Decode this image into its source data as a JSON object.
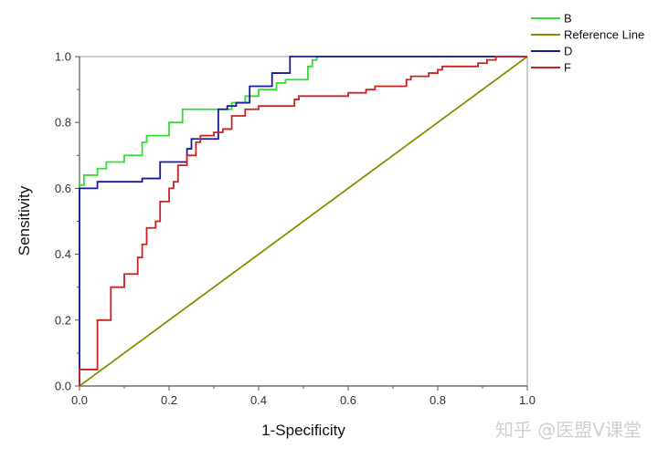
{
  "chart_data": {
    "type": "line",
    "title": "",
    "xlabel": "1-Specificity",
    "ylabel": "Sensitivity",
    "xlim": [
      0,
      1
    ],
    "ylim": [
      0,
      1
    ],
    "xticks": [
      "0.0",
      "0.2",
      "0.4",
      "0.6",
      "0.8",
      "1.0"
    ],
    "yticks": [
      "0.0",
      "0.2",
      "0.4",
      "0.6",
      "0.8",
      "1.0"
    ],
    "grid": false,
    "legend_position": "top-right, outside plot",
    "series": [
      {
        "name": "B",
        "color": "#33dd33",
        "step": true,
        "points": [
          [
            0,
            0
          ],
          [
            0,
            0.61
          ],
          [
            0.01,
            0.61
          ],
          [
            0.01,
            0.64
          ],
          [
            0.04,
            0.64
          ],
          [
            0.04,
            0.66
          ],
          [
            0.06,
            0.66
          ],
          [
            0.06,
            0.68
          ],
          [
            0.1,
            0.68
          ],
          [
            0.1,
            0.7
          ],
          [
            0.14,
            0.7
          ],
          [
            0.14,
            0.74
          ],
          [
            0.15,
            0.74
          ],
          [
            0.15,
            0.76
          ],
          [
            0.2,
            0.76
          ],
          [
            0.2,
            0.8
          ],
          [
            0.23,
            0.8
          ],
          [
            0.23,
            0.84
          ],
          [
            0.34,
            0.84
          ],
          [
            0.34,
            0.86
          ],
          [
            0.37,
            0.86
          ],
          [
            0.37,
            0.88
          ],
          [
            0.4,
            0.88
          ],
          [
            0.4,
            0.9
          ],
          [
            0.44,
            0.9
          ],
          [
            0.44,
            0.92
          ],
          [
            0.46,
            0.92
          ],
          [
            0.46,
            0.93
          ],
          [
            0.51,
            0.93
          ],
          [
            0.51,
            0.97
          ],
          [
            0.52,
            0.97
          ],
          [
            0.52,
            0.99
          ],
          [
            0.53,
            0.99
          ],
          [
            0.53,
            1.0
          ],
          [
            1,
            1.0
          ]
        ]
      },
      {
        "name": "Reference Line",
        "color": "#8c8c00",
        "step": false,
        "points": [
          [
            0,
            0
          ],
          [
            1,
            1
          ]
        ]
      },
      {
        "name": "D",
        "color": "#1a1a99",
        "step": true,
        "points": [
          [
            0,
            0
          ],
          [
            0,
            0.6
          ],
          [
            0.04,
            0.6
          ],
          [
            0.04,
            0.62
          ],
          [
            0.14,
            0.62
          ],
          [
            0.14,
            0.63
          ],
          [
            0.18,
            0.63
          ],
          [
            0.18,
            0.68
          ],
          [
            0.24,
            0.68
          ],
          [
            0.24,
            0.72
          ],
          [
            0.25,
            0.72
          ],
          [
            0.25,
            0.75
          ],
          [
            0.31,
            0.75
          ],
          [
            0.31,
            0.84
          ],
          [
            0.33,
            0.84
          ],
          [
            0.33,
            0.85
          ],
          [
            0.35,
            0.85
          ],
          [
            0.35,
            0.86
          ],
          [
            0.38,
            0.86
          ],
          [
            0.38,
            0.91
          ],
          [
            0.43,
            0.91
          ],
          [
            0.43,
            0.95
          ],
          [
            0.47,
            0.95
          ],
          [
            0.47,
            1.0
          ],
          [
            1,
            1.0
          ]
        ]
      },
      {
        "name": "F",
        "color": "#cc2222",
        "step": true,
        "points": [
          [
            0,
            0
          ],
          [
            0,
            0.05
          ],
          [
            0.04,
            0.05
          ],
          [
            0.04,
            0.2
          ],
          [
            0.07,
            0.2
          ],
          [
            0.07,
            0.3
          ],
          [
            0.1,
            0.3
          ],
          [
            0.1,
            0.34
          ],
          [
            0.13,
            0.34
          ],
          [
            0.13,
            0.39
          ],
          [
            0.14,
            0.39
          ],
          [
            0.14,
            0.43
          ],
          [
            0.15,
            0.43
          ],
          [
            0.15,
            0.48
          ],
          [
            0.17,
            0.48
          ],
          [
            0.17,
            0.5
          ],
          [
            0.18,
            0.5
          ],
          [
            0.18,
            0.56
          ],
          [
            0.2,
            0.56
          ],
          [
            0.2,
            0.6
          ],
          [
            0.21,
            0.6
          ],
          [
            0.21,
            0.62
          ],
          [
            0.22,
            0.62
          ],
          [
            0.22,
            0.67
          ],
          [
            0.24,
            0.67
          ],
          [
            0.24,
            0.7
          ],
          [
            0.26,
            0.7
          ],
          [
            0.26,
            0.74
          ],
          [
            0.27,
            0.74
          ],
          [
            0.27,
            0.76
          ],
          [
            0.3,
            0.76
          ],
          [
            0.3,
            0.77
          ],
          [
            0.32,
            0.77
          ],
          [
            0.32,
            0.78
          ],
          [
            0.34,
            0.78
          ],
          [
            0.34,
            0.82
          ],
          [
            0.37,
            0.82
          ],
          [
            0.37,
            0.84
          ],
          [
            0.4,
            0.84
          ],
          [
            0.4,
            0.85
          ],
          [
            0.48,
            0.85
          ],
          [
            0.48,
            0.87
          ],
          [
            0.49,
            0.87
          ],
          [
            0.49,
            0.88
          ],
          [
            0.6,
            0.88
          ],
          [
            0.6,
            0.89
          ],
          [
            0.64,
            0.89
          ],
          [
            0.64,
            0.9
          ],
          [
            0.66,
            0.9
          ],
          [
            0.66,
            0.91
          ],
          [
            0.73,
            0.91
          ],
          [
            0.73,
            0.93
          ],
          [
            0.74,
            0.93
          ],
          [
            0.74,
            0.94
          ],
          [
            0.78,
            0.94
          ],
          [
            0.78,
            0.95
          ],
          [
            0.8,
            0.95
          ],
          [
            0.8,
            0.96
          ],
          [
            0.81,
            0.96
          ],
          [
            0.81,
            0.97
          ],
          [
            0.89,
            0.97
          ],
          [
            0.89,
            0.98
          ],
          [
            0.91,
            0.98
          ],
          [
            0.91,
            0.99
          ],
          [
            0.93,
            0.99
          ],
          [
            0.93,
            1.0
          ],
          [
            1,
            1.0
          ]
        ]
      }
    ]
  },
  "watermark": {
    "text": "知乎 @医盟V课堂"
  }
}
